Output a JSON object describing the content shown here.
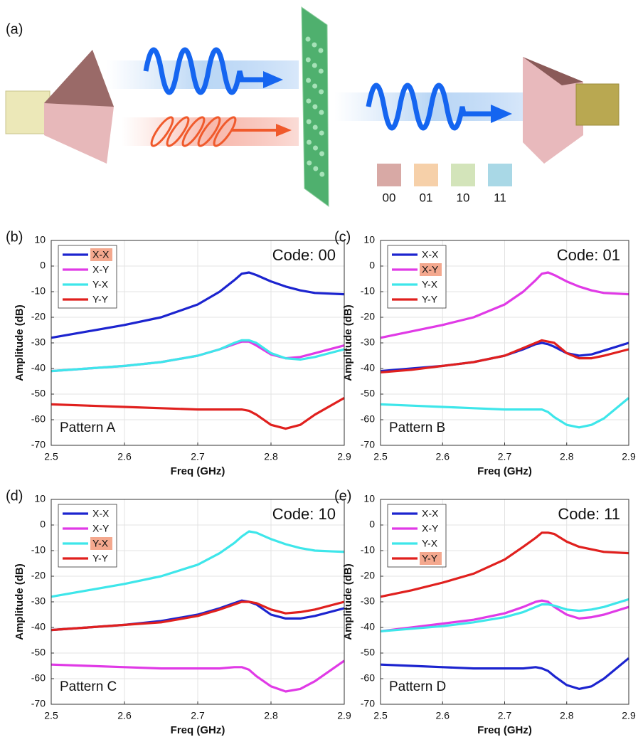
{
  "diagram": {
    "label": "(a)",
    "codes": [
      "00",
      "01",
      "10",
      "11"
    ],
    "code_colors": [
      "#d8a9a5",
      "#f6d0a9",
      "#d3e4ba",
      "#a9d8e6"
    ]
  },
  "chart_data": [
    {
      "type": "line",
      "panel": "(b)",
      "code_label": "Code: 00",
      "pattern_label": "Pattern A",
      "x_label": "Freq (GHz)",
      "y_label": "Amplitude (dB)",
      "x": [
        2.5,
        2.55,
        2.6,
        2.65,
        2.7,
        2.73,
        2.75,
        2.76,
        2.77,
        2.78,
        2.8,
        2.82,
        2.84,
        2.86,
        2.9
      ],
      "series": [
        {
          "name": "X-X",
          "color": "#1c24cf",
          "highlighted": true,
          "values": [
            -28,
            -25.5,
            -23,
            -20,
            -15,
            -10,
            -5.5,
            -3,
            -2.5,
            -3.5,
            -6,
            -8,
            -9.5,
            -10.5,
            -11
          ]
        },
        {
          "name": "X-Y",
          "color": "#e03ae6",
          "values": [
            -41,
            -40,
            -39,
            -37.5,
            -35,
            -32.5,
            -30.5,
            -29.5,
            -29.5,
            -31,
            -34.5,
            -36,
            -35.5,
            -34,
            -31
          ]
        },
        {
          "name": "Y-X",
          "color": "#3ee6ea",
          "values": [
            -41,
            -40,
            -39,
            -37.5,
            -35,
            -32.5,
            -30,
            -29,
            -29,
            -30,
            -34,
            -36,
            -36.5,
            -35.5,
            -32.5
          ]
        },
        {
          "name": "Y-Y",
          "color": "#e0201e",
          "values": [
            -54,
            -54.5,
            -55,
            -55.5,
            -56,
            -56,
            -56,
            -56,
            -56.5,
            -58,
            -62,
            -63.5,
            -62,
            -58,
            -51.5
          ]
        }
      ],
      "xlim": [
        2.5,
        2.9
      ],
      "ylim": [
        -70,
        10
      ],
      "xticks": [
        2.5,
        2.6,
        2.7,
        2.8,
        2.9
      ],
      "yticks": [
        10,
        0,
        -10,
        -20,
        -30,
        -40,
        -50,
        -60,
        -70
      ],
      "grid": true,
      "legend": "upper left"
    },
    {
      "type": "line",
      "panel": "(c)",
      "code_label": "Code: 01",
      "pattern_label": "Pattern B",
      "x_label": "Freq (GHz)",
      "y_label": "Amplitude (dB)",
      "x": [
        2.5,
        2.55,
        2.6,
        2.65,
        2.7,
        2.73,
        2.75,
        2.76,
        2.77,
        2.78,
        2.8,
        2.82,
        2.84,
        2.86,
        2.9
      ],
      "series": [
        {
          "name": "X-X",
          "color": "#1c24cf",
          "values": [
            -41,
            -40,
            -39,
            -37.5,
            -35,
            -32.5,
            -30.5,
            -30,
            -30.5,
            -31.5,
            -34,
            -35,
            -34.5,
            -33,
            -30
          ]
        },
        {
          "name": "X-Y",
          "color": "#e03ae6",
          "highlighted": true,
          "values": [
            -28,
            -25.5,
            -23,
            -20,
            -15,
            -10,
            -5.5,
            -3,
            -2.5,
            -3.5,
            -6,
            -8,
            -9.5,
            -10.5,
            -11
          ]
        },
        {
          "name": "Y-X",
          "color": "#3ee6ea",
          "values": [
            -54,
            -54.5,
            -55,
            -55.5,
            -56,
            -56,
            -56,
            -56,
            -57,
            -59,
            -62,
            -63,
            -62,
            -59.5,
            -51.5
          ]
        },
        {
          "name": "Y-Y",
          "color": "#e0201e",
          "values": [
            -41.5,
            -40.5,
            -39,
            -37.5,
            -35,
            -32,
            -30,
            -29,
            -29.5,
            -30,
            -34,
            -36,
            -36,
            -35,
            -32.5
          ]
        }
      ],
      "xlim": [
        2.5,
        2.9
      ],
      "ylim": [
        -70,
        10
      ],
      "xticks": [
        2.5,
        2.6,
        2.7,
        2.8,
        2.9
      ],
      "yticks": [
        10,
        0,
        -10,
        -20,
        -30,
        -40,
        -50,
        -60,
        -70
      ],
      "grid": true,
      "legend": "upper left"
    },
    {
      "type": "line",
      "panel": "(d)",
      "code_label": "Code: 10",
      "pattern_label": "Pattern C",
      "x_label": "Freq (GHz)",
      "y_label": "Amplitude (dB)",
      "x": [
        2.5,
        2.55,
        2.6,
        2.65,
        2.7,
        2.73,
        2.75,
        2.76,
        2.77,
        2.78,
        2.8,
        2.82,
        2.84,
        2.86,
        2.9
      ],
      "series": [
        {
          "name": "X-X",
          "color": "#1c24cf",
          "values": [
            -41,
            -40,
            -39,
            -37.5,
            -35,
            -32.5,
            -30.5,
            -29.5,
            -30,
            -31,
            -35,
            -36.5,
            -36.5,
            -35.5,
            -32.5
          ]
        },
        {
          "name": "X-Y",
          "color": "#e03ae6",
          "values": [
            -54.5,
            -55,
            -55.5,
            -56,
            -56,
            -56,
            -55.5,
            -55.5,
            -56.5,
            -59,
            -63,
            -65,
            -64,
            -61,
            -53
          ]
        },
        {
          "name": "Y-X",
          "color": "#3ee6ea",
          "highlighted": true,
          "values": [
            -28,
            -25.5,
            -23,
            -20,
            -15.5,
            -11,
            -7,
            -4.5,
            -2.5,
            -3,
            -5.5,
            -7.5,
            -9,
            -10,
            -10.5
          ]
        },
        {
          "name": "Y-Y",
          "color": "#e0201e",
          "values": [
            -41,
            -40,
            -39,
            -38,
            -35.5,
            -33,
            -31,
            -30,
            -30,
            -30.5,
            -33,
            -34.5,
            -34,
            -33,
            -30
          ]
        }
      ],
      "xlim": [
        2.5,
        2.9
      ],
      "ylim": [
        -70,
        10
      ],
      "xticks": [
        2.5,
        2.6,
        2.7,
        2.8,
        2.9
      ],
      "yticks": [
        10,
        0,
        -10,
        -20,
        -30,
        -40,
        -50,
        -60,
        -70
      ],
      "grid": true,
      "legend": "upper left"
    },
    {
      "type": "line",
      "panel": "(e)",
      "code_label": "Code: 11",
      "pattern_label": "Pattern D",
      "x_label": "Freq (GHz)",
      "y_label": "Amplitude (dB)",
      "x": [
        2.5,
        2.55,
        2.6,
        2.65,
        2.7,
        2.73,
        2.75,
        2.76,
        2.77,
        2.78,
        2.8,
        2.82,
        2.84,
        2.86,
        2.9
      ],
      "series": [
        {
          "name": "X-X",
          "color": "#1c24cf",
          "values": [
            -54.5,
            -55,
            -55.5,
            -56,
            -56,
            -56,
            -55.5,
            -56,
            -57,
            -59,
            -62.5,
            -64,
            -63,
            -60,
            -52
          ]
        },
        {
          "name": "X-Y",
          "color": "#e03ae6",
          "values": [
            -41.5,
            -40,
            -38.5,
            -37,
            -34.5,
            -32,
            -30,
            -29.5,
            -30,
            -32,
            -35,
            -36.5,
            -36,
            -35,
            -32
          ]
        },
        {
          "name": "Y-X",
          "color": "#3ee6ea",
          "values": [
            -41.5,
            -40.5,
            -39.5,
            -38,
            -36,
            -34,
            -32,
            -31,
            -31,
            -31.5,
            -33,
            -33.5,
            -33,
            -32,
            -29
          ]
        },
        {
          "name": "Y-Y",
          "color": "#e0201e",
          "highlighted": true,
          "values": [
            -28,
            -25.5,
            -22.5,
            -19,
            -13.5,
            -8.5,
            -5,
            -3,
            -3,
            -3.5,
            -6.5,
            -8.5,
            -9.5,
            -10.5,
            -11
          ]
        }
      ],
      "xlim": [
        2.5,
        2.9
      ],
      "ylim": [
        -70,
        10
      ],
      "xticks": [
        2.5,
        2.6,
        2.7,
        2.8,
        2.9
      ],
      "yticks": [
        10,
        0,
        -10,
        -20,
        -30,
        -40,
        -50,
        -60,
        -70
      ],
      "grid": true,
      "legend": "upper left"
    }
  ]
}
